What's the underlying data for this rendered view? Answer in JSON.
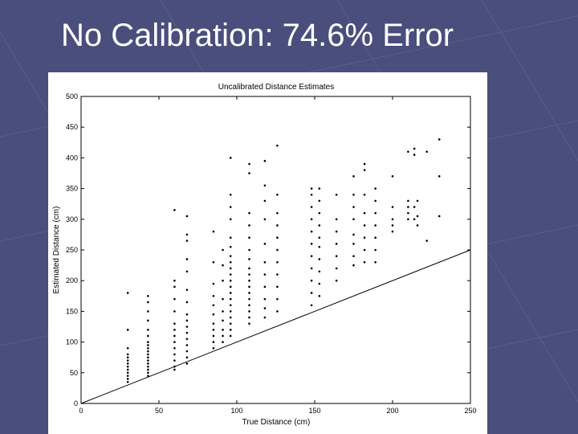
{
  "slide": {
    "title": "No Calibration: 74.6% Error",
    "background_color": "#4a4e7c"
  },
  "chart_data": {
    "type": "scatter",
    "title": "Uncalibrated Distance Estimates",
    "xlabel": "True Distance (cm)",
    "ylabel": "Estimated Distance (cm)",
    "xlim": [
      0,
      250
    ],
    "ylim": [
      0,
      500
    ],
    "xticks": [
      0,
      50,
      100,
      150,
      200,
      250
    ],
    "yticks": [
      0,
      50,
      100,
      150,
      200,
      250,
      300,
      350,
      400,
      450,
      500
    ],
    "grid": false,
    "reference_line": {
      "from": [
        0,
        0
      ],
      "to": [
        250,
        250
      ]
    },
    "series": [
      {
        "points": [
          [
            30,
            35
          ],
          [
            30,
            40
          ],
          [
            30,
            45
          ],
          [
            30,
            50
          ],
          [
            30,
            55
          ],
          [
            30,
            60
          ],
          [
            30,
            65
          ],
          [
            30,
            70
          ],
          [
            30,
            75
          ],
          [
            30,
            80
          ],
          [
            30,
            90
          ],
          [
            30,
            120
          ],
          [
            30,
            180
          ],
          [
            43,
            45
          ],
          [
            43,
            50
          ],
          [
            43,
            55
          ],
          [
            43,
            60
          ],
          [
            43,
            65
          ],
          [
            43,
            70
          ],
          [
            43,
            75
          ],
          [
            43,
            80
          ],
          [
            43,
            85
          ],
          [
            43,
            90
          ],
          [
            43,
            95
          ],
          [
            43,
            100
          ],
          [
            43,
            110
          ],
          [
            43,
            120
          ],
          [
            43,
            135
          ],
          [
            43,
            150
          ],
          [
            43,
            165
          ],
          [
            43,
            175
          ],
          [
            60,
            55
          ],
          [
            60,
            60
          ],
          [
            60,
            70
          ],
          [
            60,
            80
          ],
          [
            60,
            90
          ],
          [
            60,
            100
          ],
          [
            60,
            110
          ],
          [
            60,
            120
          ],
          [
            60,
            130
          ],
          [
            60,
            150
          ],
          [
            60,
            170
          ],
          [
            60,
            190
          ],
          [
            60,
            200
          ],
          [
            60,
            315
          ],
          [
            68,
            65
          ],
          [
            68,
            75
          ],
          [
            68,
            85
          ],
          [
            68,
            95
          ],
          [
            68,
            105
          ],
          [
            68,
            115
          ],
          [
            68,
            125
          ],
          [
            68,
            135
          ],
          [
            68,
            145
          ],
          [
            68,
            165
          ],
          [
            68,
            185
          ],
          [
            68,
            215
          ],
          [
            68,
            235
          ],
          [
            68,
            265
          ],
          [
            68,
            275
          ],
          [
            68,
            305
          ],
          [
            85,
            90
          ],
          [
            85,
            100
          ],
          [
            85,
            110
          ],
          [
            85,
            120
          ],
          [
            85,
            130
          ],
          [
            85,
            145
          ],
          [
            85,
            160
          ],
          [
            85,
            175
          ],
          [
            85,
            195
          ],
          [
            85,
            230
          ],
          [
            85,
            280
          ],
          [
            91,
            100
          ],
          [
            91,
            110
          ],
          [
            91,
            120
          ],
          [
            91,
            135
          ],
          [
            91,
            150
          ],
          [
            91,
            170
          ],
          [
            91,
            200
          ],
          [
            91,
            225
          ],
          [
            91,
            250
          ],
          [
            96,
            110
          ],
          [
            96,
            120
          ],
          [
            96,
            130
          ],
          [
            96,
            140
          ],
          [
            96,
            150
          ],
          [
            96,
            160
          ],
          [
            96,
            170
          ],
          [
            96,
            180
          ],
          [
            96,
            190
          ],
          [
            96,
            200
          ],
          [
            96,
            210
          ],
          [
            96,
            220
          ],
          [
            96,
            230
          ],
          [
            96,
            240
          ],
          [
            96,
            255
          ],
          [
            96,
            270
          ],
          [
            96,
            300
          ],
          [
            96,
            320
          ],
          [
            96,
            340
          ],
          [
            96,
            400
          ],
          [
            108,
            130
          ],
          [
            108,
            140
          ],
          [
            108,
            150
          ],
          [
            108,
            160
          ],
          [
            108,
            170
          ],
          [
            108,
            180
          ],
          [
            108,
            190
          ],
          [
            108,
            200
          ],
          [
            108,
            210
          ],
          [
            108,
            220
          ],
          [
            108,
            235
          ],
          [
            108,
            250
          ],
          [
            108,
            270
          ],
          [
            108,
            290
          ],
          [
            108,
            310
          ],
          [
            108,
            375
          ],
          [
            108,
            390
          ],
          [
            118,
            140
          ],
          [
            118,
            155
          ],
          [
            118,
            170
          ],
          [
            118,
            190
          ],
          [
            118,
            210
          ],
          [
            118,
            230
          ],
          [
            118,
            260
          ],
          [
            118,
            300
          ],
          [
            118,
            330
          ],
          [
            118,
            355
          ],
          [
            118,
            395
          ],
          [
            126,
            150
          ],
          [
            126,
            170
          ],
          [
            126,
            190
          ],
          [
            126,
            210
          ],
          [
            126,
            230
          ],
          [
            126,
            250
          ],
          [
            126,
            270
          ],
          [
            126,
            290
          ],
          [
            126,
            310
          ],
          [
            126,
            340
          ],
          [
            126,
            420
          ],
          [
            148,
            160
          ],
          [
            148,
            180
          ],
          [
            148,
            200
          ],
          [
            148,
            220
          ],
          [
            148,
            240
          ],
          [
            148,
            260
          ],
          [
            148,
            280
          ],
          [
            148,
            300
          ],
          [
            148,
            320
          ],
          [
            148,
            340
          ],
          [
            148,
            350
          ],
          [
            153,
            175
          ],
          [
            153,
            195
          ],
          [
            153,
            215
          ],
          [
            153,
            235
          ],
          [
            153,
            255
          ],
          [
            153,
            270
          ],
          [
            153,
            290
          ],
          [
            153,
            310
          ],
          [
            153,
            330
          ],
          [
            153,
            350
          ],
          [
            164,
            200
          ],
          [
            164,
            220
          ],
          [
            164,
            240
          ],
          [
            164,
            260
          ],
          [
            164,
            280
          ],
          [
            164,
            300
          ],
          [
            164,
            340
          ],
          [
            175,
            225
          ],
          [
            175,
            240
          ],
          [
            175,
            260
          ],
          [
            175,
            275
          ],
          [
            175,
            300
          ],
          [
            175,
            320
          ],
          [
            175,
            340
          ],
          [
            175,
            370
          ],
          [
            182,
            230
          ],
          [
            182,
            250
          ],
          [
            182,
            270
          ],
          [
            182,
            290
          ],
          [
            182,
            310
          ],
          [
            182,
            340
          ],
          [
            182,
            380
          ],
          [
            182,
            390
          ],
          [
            189,
            230
          ],
          [
            189,
            250
          ],
          [
            189,
            270
          ],
          [
            189,
            290
          ],
          [
            189,
            310
          ],
          [
            189,
            330
          ],
          [
            189,
            350
          ],
          [
            200,
            280
          ],
          [
            200,
            290
          ],
          [
            200,
            300
          ],
          [
            200,
            320
          ],
          [
            200,
            370
          ],
          [
            210,
            300
          ],
          [
            210,
            310
          ],
          [
            210,
            320
          ],
          [
            210,
            330
          ],
          [
            210,
            410
          ],
          [
            214,
            300
          ],
          [
            214,
            320
          ],
          [
            214,
            405
          ],
          [
            214,
            415
          ],
          [
            216,
            290
          ],
          [
            216,
            305
          ],
          [
            216,
            330
          ],
          [
            222,
            265
          ],
          [
            222,
            410
          ],
          [
            230,
            305
          ],
          [
            230,
            370
          ],
          [
            230,
            430
          ]
        ]
      }
    ]
  }
}
